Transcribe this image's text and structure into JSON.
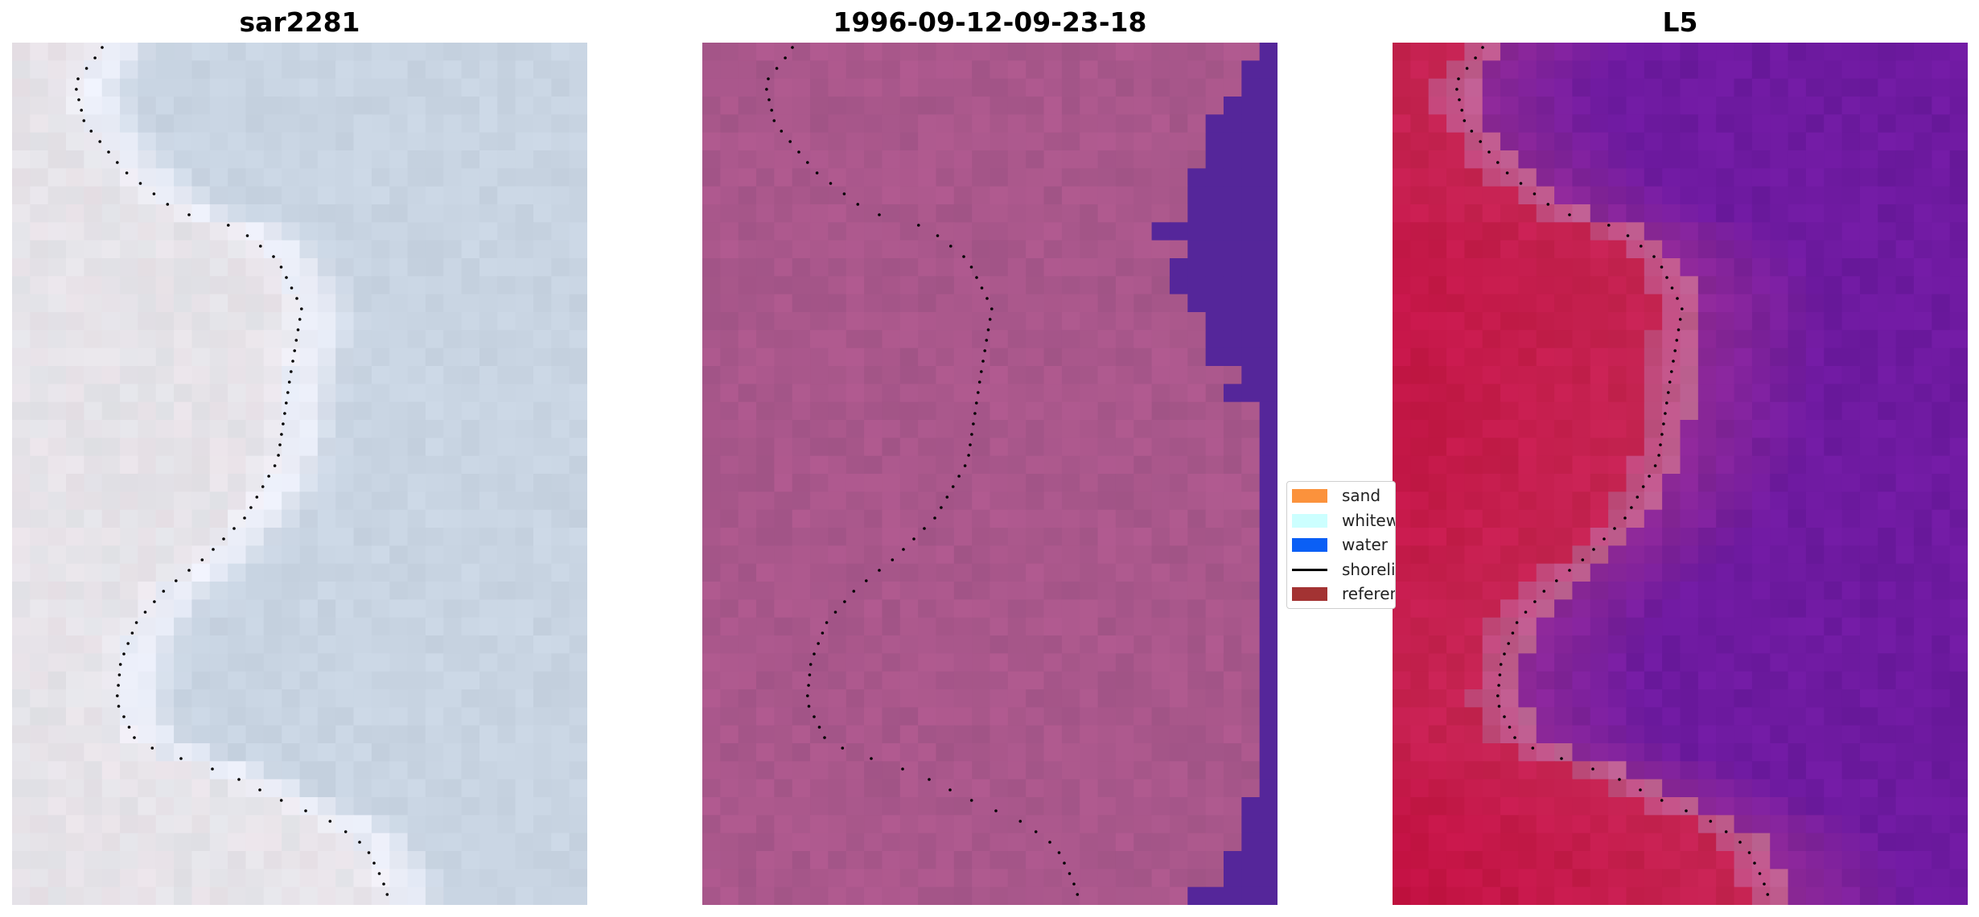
{
  "panels": [
    {
      "title": "sar2281"
    },
    {
      "title": "1996-09-12-09-23-18"
    },
    {
      "title": "L5"
    }
  ],
  "legend": {
    "items": [
      {
        "label": "sand",
        "color": "#fb923c",
        "type": "patch"
      },
      {
        "label": "whitewater",
        "color": "#ccffff",
        "type": "patch"
      },
      {
        "label": "water",
        "color": "#0a5ff5",
        "type": "patch"
      },
      {
        "label": "shoreline",
        "color": "#000000",
        "type": "line"
      },
      {
        "label": "reference shoreline",
        "color": "#a33333",
        "type": "patch"
      }
    ]
  },
  "colors": {
    "rgb_base": "#cbd3e2",
    "rgb_land": "#e9e3ea",
    "rgb_surf": "#f8f8ff",
    "class_sand_overlay": "#a9578b",
    "class_water_overlay": "#55269a",
    "index_land": "#c41a4a",
    "index_water": "#6e1aa0",
    "shoreline_dots": "#000000"
  },
  "shoreline_label": "reference shoreline"
}
